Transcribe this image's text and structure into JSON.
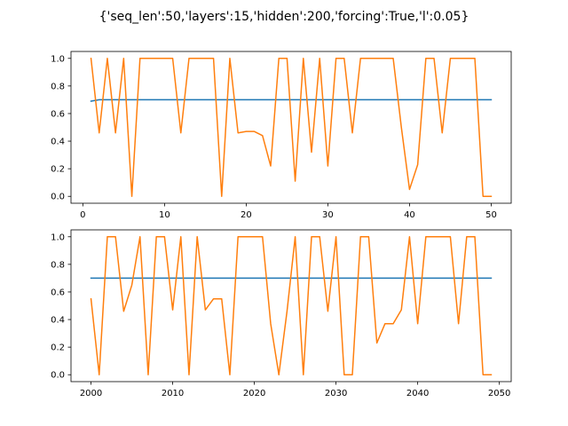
{
  "figure": {
    "suptitle": "{'seq_len':50,'layers':15,'hidden':200,'forcing':True,'l':0.05}"
  },
  "chart_data": [
    {
      "type": "line",
      "title": "",
      "xlabel": "",
      "ylabel": "",
      "xlim": [
        -1.45,
        52.45
      ],
      "ylim": [
        -0.05,
        1.05
      ],
      "xticks": [
        0,
        10,
        20,
        30,
        40,
        50
      ],
      "yticks": [
        0.0,
        0.2,
        0.4,
        0.6,
        0.8,
        1.0
      ],
      "xtick_labels": [
        "0",
        "10",
        "20",
        "30",
        "40",
        "50"
      ],
      "ytick_labels": [
        "0.0",
        "0.2",
        "0.4",
        "0.6",
        "0.8",
        "1.0"
      ],
      "grid": false,
      "series": [
        {
          "color": "#1f77b4",
          "x": [
            1,
            2,
            3,
            4,
            5,
            6,
            7,
            8,
            9,
            10,
            11,
            12,
            13,
            14,
            15,
            16,
            17,
            18,
            19,
            20,
            21,
            22,
            23,
            24,
            25,
            26,
            27,
            28,
            29,
            30,
            31,
            32,
            33,
            34,
            35,
            36,
            37,
            38,
            39,
            40,
            41,
            42,
            43,
            44,
            45,
            46,
            47,
            48,
            49,
            50
          ],
          "y": [
            0.69,
            0.7,
            0.7,
            0.7,
            0.7,
            0.7,
            0.7,
            0.7,
            0.7,
            0.7,
            0.7,
            0.7,
            0.7,
            0.7,
            0.7,
            0.7,
            0.7,
            0.7,
            0.7,
            0.7,
            0.7,
            0.7,
            0.7,
            0.7,
            0.7,
            0.7,
            0.7,
            0.7,
            0.7,
            0.7,
            0.7,
            0.7,
            0.7,
            0.7,
            0.7,
            0.7,
            0.7,
            0.7,
            0.7,
            0.7,
            0.7,
            0.7,
            0.7,
            0.7,
            0.7,
            0.7,
            0.7,
            0.7,
            0.7,
            0.7
          ]
        },
        {
          "color": "#ff7f0e",
          "x": [
            1,
            2,
            3,
            4,
            5,
            6,
            7,
            8,
            9,
            10,
            11,
            12,
            13,
            14,
            15,
            16,
            17,
            18,
            19,
            20,
            21,
            22,
            23,
            24,
            25,
            26,
            27,
            28,
            29,
            30,
            31,
            32,
            33,
            34,
            35,
            36,
            37,
            38,
            39,
            40,
            41,
            42,
            43,
            44,
            45,
            46,
            47,
            48,
            49,
            50
          ],
          "y": [
            1.0,
            0.46,
            1.0,
            0.46,
            1.0,
            0.0,
            1.0,
            1.0,
            1.0,
            1.0,
            1.0,
            0.46,
            1.0,
            1.0,
            1.0,
            1.0,
            0.0,
            1.0,
            0.46,
            0.47,
            0.47,
            0.44,
            0.22,
            1.0,
            1.0,
            0.11,
            1.0,
            0.32,
            1.0,
            0.22,
            1.0,
            1.0,
            0.46,
            1.0,
            1.0,
            1.0,
            1.0,
            1.0,
            0.5,
            0.05,
            0.23,
            1.0,
            1.0,
            0.46,
            1.0,
            1.0,
            1.0,
            1.0,
            0.0,
            0.0
          ]
        }
      ]
    },
    {
      "type": "line",
      "title": "",
      "xlabel": "",
      "ylabel": "",
      "xlim": [
        1997.55,
        2051.45
      ],
      "ylim": [
        -0.05,
        1.05
      ],
      "xticks": [
        2000,
        2010,
        2020,
        2030,
        2040,
        2050
      ],
      "yticks": [
        0.0,
        0.2,
        0.4,
        0.6,
        0.8,
        1.0
      ],
      "xtick_labels": [
        "2000",
        "2010",
        "2020",
        "2030",
        "2040",
        "2050"
      ],
      "ytick_labels": [
        "0.0",
        "0.2",
        "0.4",
        "0.6",
        "0.8",
        "1.0"
      ],
      "grid": false,
      "series": [
        {
          "color": "#1f77b4",
          "x": [
            2000,
            2049
          ],
          "y": [
            0.7,
            0.7
          ]
        },
        {
          "color": "#ff7f0e",
          "x": [
            2000,
            2001,
            2002,
            2003,
            2004,
            2005,
            2006,
            2007,
            2008,
            2009,
            2010,
            2011,
            2012,
            2013,
            2014,
            2015,
            2016,
            2017,
            2018,
            2019,
            2020,
            2021,
            2022,
            2023,
            2024,
            2025,
            2026,
            2027,
            2028,
            2029,
            2030,
            2031,
            2032,
            2033,
            2034,
            2035,
            2036,
            2037,
            2038,
            2039,
            2040,
            2041,
            2042,
            2043,
            2044,
            2045,
            2046,
            2047,
            2048,
            2049
          ],
          "y": [
            0.55,
            0.0,
            1.0,
            1.0,
            0.46,
            0.65,
            1.0,
            0.0,
            1.0,
            1.0,
            0.47,
            1.0,
            0.0,
            1.0,
            0.47,
            0.55,
            0.55,
            0.0,
            1.0,
            1.0,
            1.0,
            1.0,
            0.37,
            0.0,
            0.46,
            1.0,
            0.0,
            1.0,
            1.0,
            0.46,
            1.0,
            0.0,
            0.0,
            1.0,
            1.0,
            0.23,
            0.37,
            0.37,
            0.47,
            1.0,
            0.37,
            1.0,
            1.0,
            1.0,
            1.0,
            0.37,
            1.0,
            1.0,
            0.0,
            0.0
          ]
        }
      ]
    }
  ]
}
